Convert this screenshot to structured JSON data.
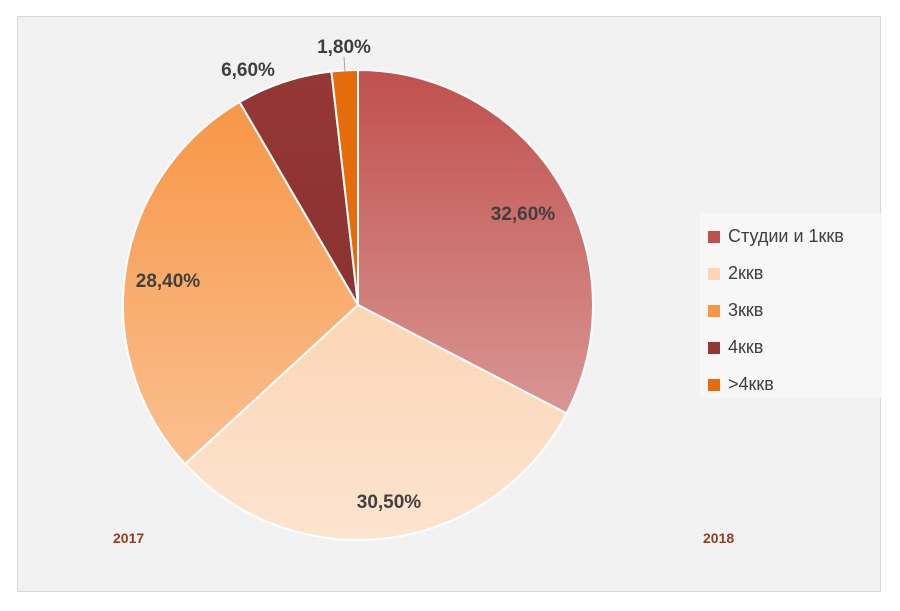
{
  "chart_data": {
    "type": "pie",
    "title": "",
    "categories": [
      "Студии и 1ккв",
      "2ккв",
      "3ккв",
      "4ккв",
      ">4ккв"
    ],
    "values": [
      32.6,
      30.5,
      28.4,
      6.6,
      1.8
    ],
    "data_labels": [
      "32,60%",
      "30,50%",
      "28,40%",
      "6,60%",
      "1,80%"
    ],
    "colors": [
      "#c0504d",
      "#fbd5b5",
      "#f79646",
      "#943634",
      "#e46c0a"
    ],
    "legend_position": "right",
    "annotations": [
      "2017",
      "2018"
    ]
  }
}
